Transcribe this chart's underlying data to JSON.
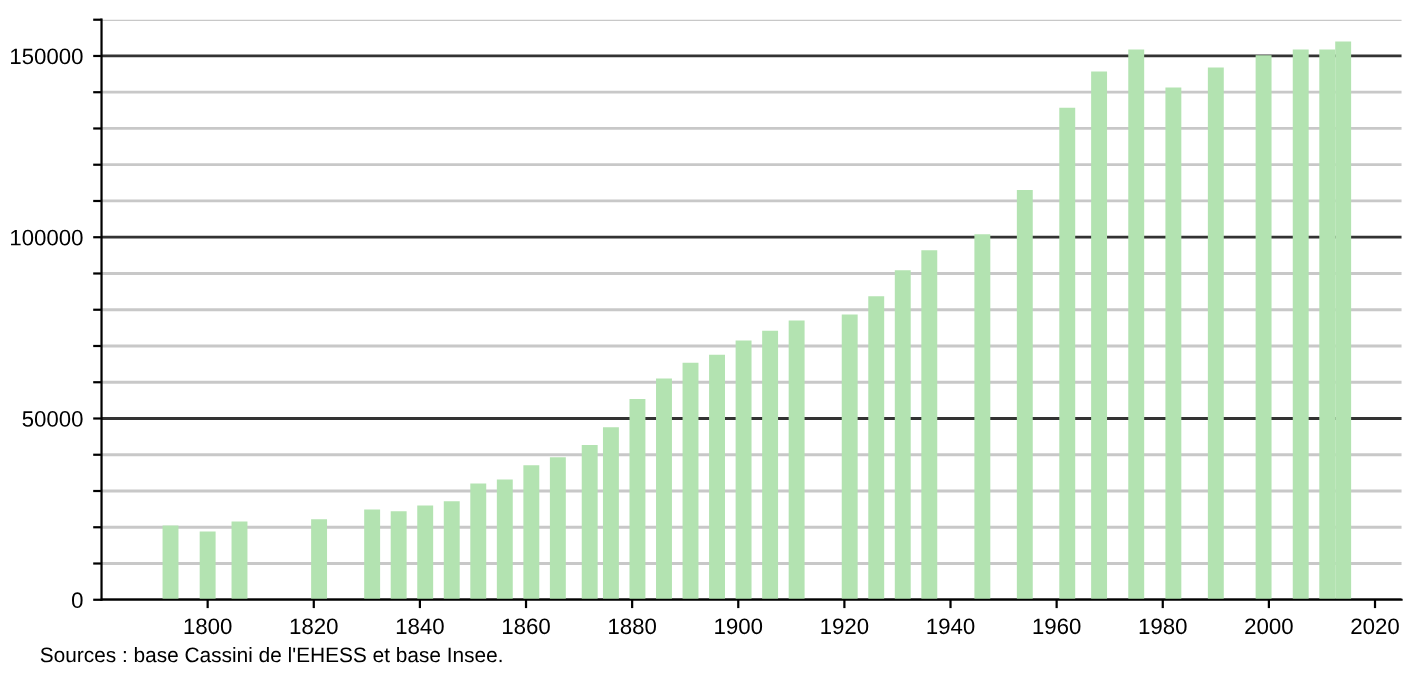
{
  "chart_data": {
    "type": "bar",
    "x": [
      1793,
      1800,
      1806,
      1821,
      1831,
      1836,
      1841,
      1846,
      1851,
      1856,
      1861,
      1866,
      1872,
      1876,
      1881,
      1886,
      1891,
      1896,
      1901,
      1906,
      1911,
      1921,
      1926,
      1931,
      1936,
      1946,
      1954,
      1962,
      1968,
      1975,
      1982,
      1990,
      1999,
      2006,
      2011,
      2014
    ],
    "series": [
      {
        "color": "#b3e3b1",
        "values": [
          20500,
          18800,
          21600,
          22200,
          24900,
          24400,
          26000,
          27200,
          32100,
          33200,
          37100,
          39300,
          42700,
          47600,
          55400,
          61000,
          65400,
          67600,
          71500,
          74200,
          77000,
          78700,
          83700,
          90900,
          96400,
          100800,
          113000,
          135700,
          145700,
          151800,
          141300,
          146800,
          150200,
          151800,
          151800,
          154000
        ]
      }
    ],
    "xlim": [
      1780,
      2025
    ],
    "xticks": [
      1800,
      1820,
      1840,
      1860,
      1880,
      1900,
      1920,
      1940,
      1960,
      1980,
      2000,
      2020
    ],
    "ylim": [
      0,
      160000
    ],
    "yticks": [
      0,
      {
        "value": 10000,
        "label": null
      },
      {
        "value": 20000,
        "label": null
      },
      {
        "value": 30000,
        "label": null
      },
      {
        "value": 40000,
        "label": null
      },
      50000,
      {
        "value": 60000,
        "label": null
      },
      {
        "value": 70000,
        "label": null
      },
      {
        "value": 80000,
        "label": null
      },
      {
        "value": 90000,
        "label": null
      },
      100000,
      {
        "value": 110000,
        "label": null
      },
      {
        "value": 120000,
        "label": null
      },
      {
        "value": 130000,
        "label": null
      },
      {
        "value": 140000,
        "label": null
      },
      150000,
      {
        "value": 160000,
        "label": null
      }
    ],
    "grid": "y",
    "legend": false,
    "annotations": [
      "Sources : base Cassini de l'EHESS et base Insee."
    ]
  }
}
